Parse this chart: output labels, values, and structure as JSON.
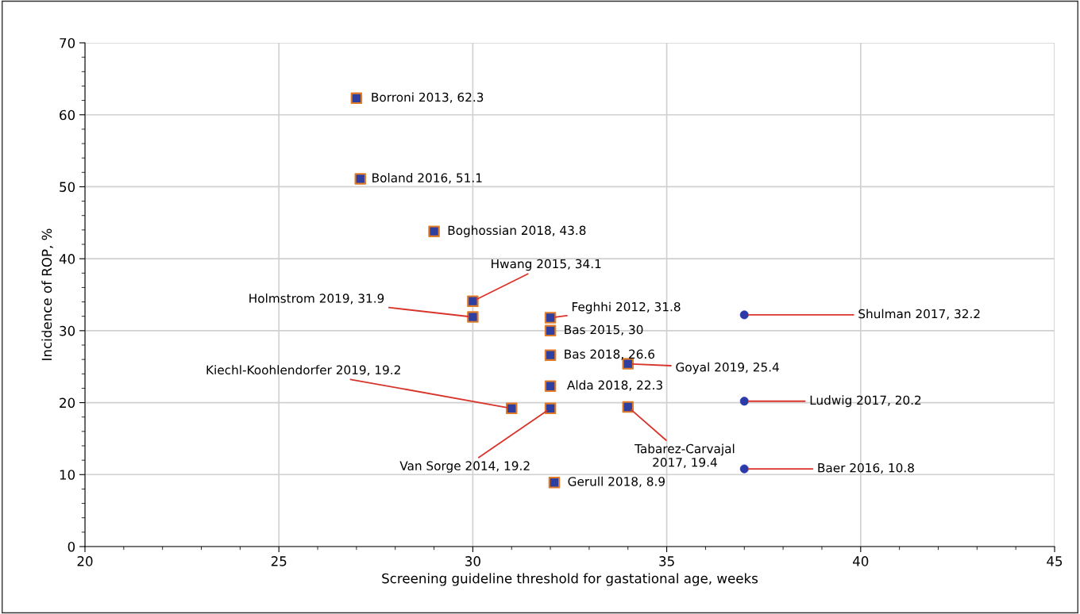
{
  "chart_data": {
    "type": "scatter",
    "xlabel": "Screening guideline threshold for gastational age, weeks",
    "ylabel": "Incidence of ROP, %",
    "xlim": [
      20,
      45
    ],
    "xticks": [
      20,
      25,
      30,
      35,
      40,
      45
    ],
    "ylim": [
      0,
      70
    ],
    "yticks": [
      0,
      10,
      20,
      30,
      40,
      50,
      60,
      70
    ],
    "grid": true,
    "series": [
      {
        "color": "#2e3fa0",
        "marker": "square",
        "x": [
          27,
          27.1,
          29,
          30,
          30,
          32,
          32,
          32,
          34,
          32,
          31,
          32,
          34,
          32.1
        ],
        "values": [
          62.3,
          51.1,
          43.8,
          34.1,
          31.9,
          31.8,
          30,
          26.6,
          25.4,
          22.3,
          19.2,
          19.2,
          19.4,
          8.9
        ]
      },
      {
        "color": "#2b3aa8",
        "marker": "circle",
        "x": [
          37,
          37,
          37
        ],
        "values": [
          32.2,
          20.2,
          10.8
        ]
      }
    ],
    "annotations": [
      {
        "text": "Borroni 2013, 62.3",
        "x": 27,
        "y": 62.3
      },
      {
        "text": "Boland 2016, 51.1",
        "x": 27.1,
        "y": 51.1
      },
      {
        "text": "Boghossian 2018, 43.8",
        "x": 29,
        "y": 43.8
      },
      {
        "text": "Hwang 2015, 34.1",
        "x": 30,
        "y": 34.1
      },
      {
        "text": "Holmstrom 2019, 31.9",
        "x": 30,
        "y": 31.9
      },
      {
        "text": "Feghhi 2012, 31.8",
        "x": 32,
        "y": 31.8
      },
      {
        "text": "Bas 2015, 30",
        "x": 32,
        "y": 30
      },
      {
        "text": "Bas 2018, 26.6",
        "x": 32,
        "y": 26.6
      },
      {
        "text": "Goyal 2019, 25.4",
        "x": 34,
        "y": 25.4
      },
      {
        "text": "Alda 2018, 22.3",
        "x": 32,
        "y": 22.3
      },
      {
        "text": "Kiechl-Koohlendorfer 2019, 19.2",
        "x": 31,
        "y": 19.2
      },
      {
        "text": "Van Sorge 2014, 19.2",
        "x": 32,
        "y": 19.2
      },
      {
        "text": "Tabarez-Carvajal\n2017, 19.4",
        "x": 34,
        "y": 19.4
      },
      {
        "text": "Gerull 2018, 8.9",
        "x": 32.1,
        "y": 8.9
      },
      {
        "text": "Shulman 2017, 32.2",
        "x": 37,
        "y": 32.2
      },
      {
        "text": "Ludwig 2017, 20.2",
        "x": 37,
        "y": 20.2
      },
      {
        "text": "Baer 2016, 10.8",
        "x": 37,
        "y": 10.8
      }
    ]
  }
}
